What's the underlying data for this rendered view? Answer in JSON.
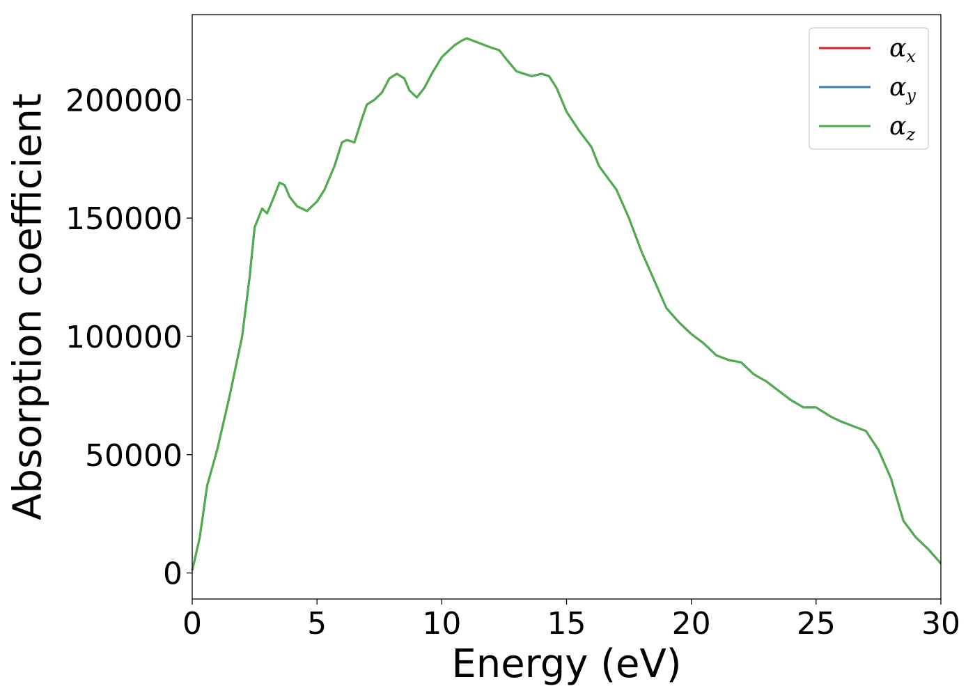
{
  "chart_data": {
    "type": "line",
    "title": "",
    "xlabel": "Energy (eV)",
    "ylabel": "Absorption coefficient",
    "xlim": [
      0,
      30
    ],
    "ylim": [
      -11000,
      236000
    ],
    "xticks": [
      0,
      5,
      10,
      15,
      20,
      25,
      30
    ],
    "xtick_labels": [
      "0",
      "5",
      "10",
      "15",
      "20",
      "25",
      "30"
    ],
    "yticks": [
      0,
      50000,
      100000,
      150000,
      200000
    ],
    "ytick_labels": [
      "0",
      "50000",
      "100000",
      "150000",
      "200000"
    ],
    "grid": false,
    "legend_position": "top-right",
    "series": [
      {
        "name": "αx",
        "symbol": "α",
        "subscript": "x",
        "color": "#e41a1c"
      },
      {
        "name": "αy",
        "symbol": "α",
        "subscript": "y",
        "color": "#377eb8"
      },
      {
        "name": "αz",
        "symbol": "α",
        "subscript": "z",
        "color": "#4daf4a"
      }
    ],
    "x": [
      0,
      0.3,
      0.6,
      1.0,
      1.5,
      2.0,
      2.3,
      2.5,
      2.8,
      3.0,
      3.2,
      3.5,
      3.7,
      3.9,
      4.2,
      4.6,
      5.0,
      5.3,
      5.7,
      6.0,
      6.2,
      6.5,
      6.8,
      7.0,
      7.3,
      7.6,
      7.9,
      8.2,
      8.5,
      8.7,
      9.0,
      9.3,
      9.6,
      10.0,
      10.5,
      10.8,
      11.0,
      11.5,
      12.0,
      12.3,
      12.6,
      13.0,
      13.3,
      13.6,
      14.0,
      14.3,
      14.6,
      15.0,
      15.5,
      16.0,
      16.3,
      17.0,
      17.5,
      18.0,
      18.5,
      19.0,
      19.5,
      20.0,
      20.5,
      21.0,
      21.5,
      22.0,
      22.5,
      23.0,
      23.5,
      24.0,
      24.5,
      25.0,
      25.3,
      25.6,
      26.0,
      26.5,
      27.0,
      27.5,
      28.0,
      28.5,
      29.0,
      29.5,
      30.0
    ],
    "values": [
      1000,
      15000,
      37000,
      52000,
      75000,
      100000,
      125000,
      146000,
      154000,
      152000,
      157000,
      165000,
      164000,
      159000,
      155000,
      153000,
      157000,
      162000,
      172000,
      182000,
      183000,
      182000,
      192000,
      198000,
      200000,
      203000,
      209000,
      211000,
      209000,
      204000,
      201000,
      205000,
      211000,
      218000,
      223000,
      225000,
      226000,
      224000,
      222000,
      221000,
      217000,
      212000,
      211000,
      210000,
      211000,
      210000,
      205000,
      195000,
      187000,
      180000,
      172000,
      162000,
      150000,
      136000,
      124000,
      112000,
      106000,
      101000,
      97000,
      92000,
      90000,
      89000,
      84000,
      81000,
      77000,
      73000,
      70000,
      70000,
      68000,
      66000,
      64000,
      62000,
      60000,
      52000,
      40000,
      22000,
      15000,
      10000,
      4000
    ]
  }
}
